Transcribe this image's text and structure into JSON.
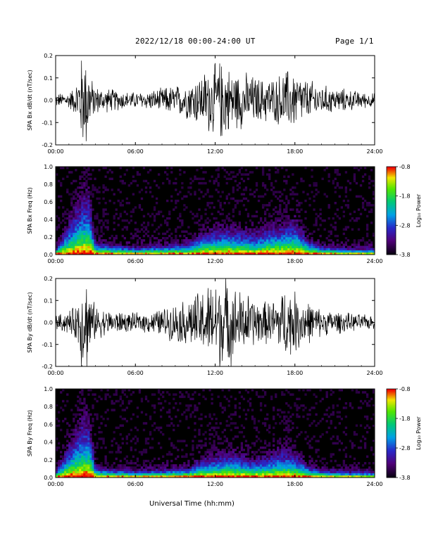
{
  "header": {
    "title": "2022/12/18  00:00-24:00 UT",
    "page": "Page 1/1"
  },
  "x_axis_title": "Universal Time (hh:mm)",
  "colorbar": {
    "label": "Log₁₀ Power",
    "ticks": [
      "-0.8",
      "-1.8",
      "-2.8",
      "-3.8"
    ],
    "range": [
      -3.8,
      -0.8
    ]
  },
  "chart_data": [
    {
      "type": "line",
      "ylabel": "SPA Bx dB/dt (nT/sec)",
      "xlim": [
        0,
        24
      ],
      "ylim": [
        -0.2,
        0.2
      ],
      "x_ticks": [
        "00:00",
        "06:00",
        "12:00",
        "18:00",
        "24:00"
      ],
      "y_ticks": [
        "0.2",
        "0.1",
        "0.0",
        "-0.1",
        "-0.2"
      ],
      "series": [
        {
          "x": [
            0,
            0.5,
            1,
            1.5,
            2,
            2.2,
            2.4,
            2.6,
            3,
            3.5,
            4,
            4.5,
            5,
            5.5,
            6,
            6.5,
            7,
            7.5,
            8,
            8.5,
            9,
            9.5,
            10,
            10.5,
            11,
            11.5,
            12,
            12.5,
            13,
            13.5,
            14,
            14.5,
            15,
            15.5,
            16,
            16.5,
            17,
            17.5,
            18,
            18.5,
            19,
            19.5,
            20,
            20.5,
            21,
            21.5,
            22,
            22.5,
            23,
            23.5,
            24
          ],
          "amplitude": [
            0.03,
            0.03,
            0.035,
            0.06,
            0.2,
            0.2,
            0.2,
            0.1,
            0.06,
            0.05,
            0.05,
            0.045,
            0.04,
            0.035,
            0.035,
            0.035,
            0.04,
            0.045,
            0.05,
            0.06,
            0.06,
            0.07,
            0.08,
            0.1,
            0.11,
            0.14,
            0.15,
            0.17,
            0.14,
            0.12,
            0.12,
            0.11,
            0.1,
            0.09,
            0.1,
            0.09,
            0.12,
            0.13,
            0.12,
            0.1,
            0.08,
            0.08,
            0.06,
            0.06,
            0.05,
            0.05,
            0.045,
            0.04,
            0.035,
            0.03,
            0.03
          ]
        }
      ]
    },
    {
      "type": "heatmap",
      "ylabel": "SPA Bx Freq (Hz)",
      "xlim": [
        0,
        24
      ],
      "ylim": [
        0,
        1.0
      ],
      "x_ticks": [
        "00:00",
        "06:00",
        "12:00",
        "18:00",
        "24:00"
      ],
      "y_ticks": [
        "1.0",
        "0.8",
        "0.6",
        "0.4",
        "0.2",
        "0.0"
      ],
      "activity_x": [
        0,
        2,
        2.5,
        3,
        6,
        10,
        11,
        12,
        13,
        14,
        15,
        16,
        17,
        18,
        19,
        20,
        22,
        24
      ],
      "activity_peak_freq": [
        0.05,
        0.9,
        0.9,
        0.15,
        0.08,
        0.15,
        0.3,
        0.35,
        0.4,
        0.35,
        0.3,
        0.4,
        0.45,
        0.5,
        0.2,
        0.1,
        0.06,
        0.05
      ]
    },
    {
      "type": "line",
      "ylabel": "SPA By dB/dt (nT/sec)",
      "xlim": [
        0,
        24
      ],
      "ylim": [
        -0.2,
        0.2
      ],
      "x_ticks": [
        "00:00",
        "06:00",
        "12:00",
        "18:00",
        "24:00"
      ],
      "y_ticks": [
        "0.2",
        "0.1",
        "0.0",
        "-0.1",
        "-0.2"
      ],
      "series": [
        {
          "x": [
            0,
            0.5,
            1,
            1.5,
            2,
            2.2,
            2.4,
            2.6,
            3,
            3.5,
            4,
            4.5,
            5,
            5.5,
            6,
            6.5,
            7,
            7.5,
            8,
            8.5,
            9,
            9.5,
            10,
            10.5,
            11,
            11.5,
            12,
            12.5,
            13,
            13.5,
            14,
            14.5,
            15,
            15.5,
            16,
            16.5,
            17,
            17.5,
            18,
            18.5,
            19,
            19.5,
            20,
            20.5,
            21,
            21.5,
            22,
            22.5,
            23,
            23.5,
            24
          ],
          "amplitude": [
            0.03,
            0.04,
            0.05,
            0.07,
            0.2,
            0.2,
            0.2,
            0.12,
            0.07,
            0.06,
            0.05,
            0.05,
            0.045,
            0.04,
            0.04,
            0.04,
            0.045,
            0.05,
            0.06,
            0.07,
            0.08,
            0.09,
            0.1,
            0.12,
            0.14,
            0.16,
            0.18,
            0.2,
            0.18,
            0.15,
            0.13,
            0.12,
            0.1,
            0.09,
            0.09,
            0.1,
            0.14,
            0.15,
            0.13,
            0.11,
            0.09,
            0.07,
            0.06,
            0.05,
            0.05,
            0.045,
            0.04,
            0.035,
            0.035,
            0.03,
            0.03
          ]
        }
      ]
    },
    {
      "type": "heatmap",
      "ylabel": "SPA By Freq (Hz)",
      "xlim": [
        0,
        24
      ],
      "ylim": [
        0,
        1.0
      ],
      "x_ticks": [
        "00:00",
        "06:00",
        "12:00",
        "18:00",
        "24:00"
      ],
      "y_ticks": [
        "1.0",
        "0.8",
        "0.6",
        "0.4",
        "0.2",
        "0.0"
      ],
      "activity_x": [
        0,
        2,
        2.5,
        3,
        6,
        10,
        11,
        12,
        13,
        14,
        15,
        16,
        17,
        18,
        19,
        20,
        22,
        24
      ],
      "activity_peak_freq": [
        0.05,
        0.9,
        0.9,
        0.12,
        0.07,
        0.12,
        0.25,
        0.3,
        0.35,
        0.3,
        0.25,
        0.3,
        0.4,
        0.35,
        0.15,
        0.08,
        0.05,
        0.05
      ]
    }
  ]
}
